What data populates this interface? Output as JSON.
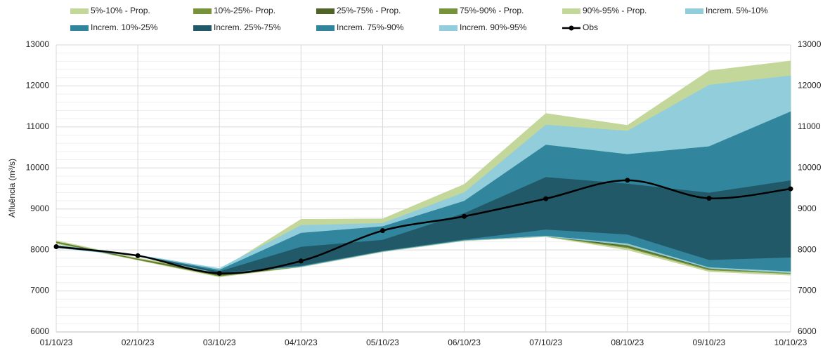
{
  "chart_data": {
    "type": "fan",
    "y_label": "Afluência  (m³/s)",
    "categories": [
      "01/10/23",
      "02/10/23",
      "03/10/23",
      "04/10/23",
      "05/10/23",
      "06/10/23",
      "07/10/23",
      "08/10/23",
      "09/10/23",
      "10/10/23"
    ],
    "ylim": [
      6000,
      13000
    ],
    "yticks": [
      6000,
      7000,
      8000,
      9000,
      10000,
      11000,
      12000,
      13000
    ],
    "y2lim": [
      6000,
      13000
    ],
    "y2ticks": [
      6000,
      7000,
      8000,
      9000,
      10000,
      11000,
      12000,
      13000
    ],
    "grid": true,
    "legend": "top",
    "series": [
      {
        "name": "5%-10% - Prop.",
        "color": "#c4d79b",
        "low": [
          8150,
          7750,
          7340,
          7580,
          7950,
          8220,
          8320,
          8000,
          7470,
          7380
        ],
        "high": [
          8170,
          7760,
          7360,
          7590,
          7960,
          8230,
          8330,
          8050,
          7510,
          7420
        ]
      },
      {
        "name": "10%-25%- Prop.",
        "color": "#76933c",
        "low": [
          8170,
          7760,
          7360,
          7590,
          7960,
          8230,
          8330,
          8050,
          7510,
          7420
        ],
        "high": [
          8190,
          7770,
          7380,
          7600,
          7970,
          8240,
          8340,
          8080,
          7540,
          7450
        ]
      },
      {
        "name": "25%-75% - Prop.",
        "color": "#4f6228",
        "low": [
          8190,
          7770,
          7380,
          7600,
          7970,
          8240,
          8340,
          8080,
          7540,
          7450
        ],
        "high": [
          8200,
          7780,
          7400,
          7620,
          7990,
          8260,
          8360,
          8100,
          7560,
          7470
        ]
      },
      {
        "name": "75%-90% - Prop.",
        "color": "#76933c",
        "low": [
          8200,
          7780,
          7400,
          7620,
          7990,
          8260,
          8360,
          8100,
          7560,
          7470
        ],
        "high": [
          8210,
          7790,
          7450,
          8600,
          8650,
          9400,
          11050,
          10900,
          12020,
          12240
        ]
      },
      {
        "name": "90%-95% - Prop.",
        "color": "#c4d79b",
        "low": [
          8210,
          7790,
          7450,
          8600,
          8650,
          9400,
          11050,
          10900,
          12020,
          12240
        ],
        "high": [
          8230,
          7800,
          7500,
          8750,
          8760,
          9600,
          11330,
          11040,
          12370,
          12610
        ]
      },
      {
        "name": "Increm. 5%-10%",
        "color": "#92cddc",
        "low": [
          8050,
          7850,
          7420,
          7590,
          7960,
          8230,
          8330,
          8120,
          7550,
          7440
        ],
        "high": [
          8060,
          7855,
          7430,
          7600,
          7970,
          8240,
          8350,
          8160,
          7580,
          7480
        ]
      },
      {
        "name": "Increm. 10%-25%",
        "color": "#31859c",
        "low": [
          8060,
          7855,
          7430,
          7600,
          7970,
          8240,
          8350,
          8160,
          7580,
          7480
        ],
        "high": [
          8070,
          7860,
          7440,
          7620,
          7980,
          8260,
          8500,
          8380,
          7760,
          7820
        ]
      },
      {
        "name": "Increm. 25%-75%",
        "color": "#215968",
        "low": [
          8070,
          7860,
          7440,
          7620,
          7980,
          8260,
          8500,
          8380,
          7760,
          7820
        ],
        "high": [
          8100,
          7870,
          7480,
          8080,
          8250,
          8900,
          9780,
          9620,
          9400,
          9700
        ]
      },
      {
        "name": "Increm. 75%-90%",
        "color": "#31859c",
        "low": [
          8100,
          7870,
          7480,
          8080,
          8250,
          8900,
          9780,
          9620,
          9400,
          9700
        ],
        "high": [
          8110,
          7875,
          7520,
          8420,
          8580,
          9200,
          10570,
          10340,
          10530,
          11380
        ]
      },
      {
        "name": "Increm. 90%-95%",
        "color": "#92cddc",
        "low": [
          8110,
          7875,
          7520,
          8420,
          8580,
          9200,
          10570,
          10340,
          10530,
          11380
        ],
        "high": [
          8120,
          7880,
          7550,
          8600,
          8650,
          9400,
          11050,
          10900,
          12020,
          12250
        ]
      },
      {
        "name": "Obs",
        "color": "#000000",
        "values": [
          8080,
          7860,
          7430,
          7730,
          8470,
          8820,
          9250,
          9700,
          9260,
          9490
        ]
      }
    ]
  }
}
